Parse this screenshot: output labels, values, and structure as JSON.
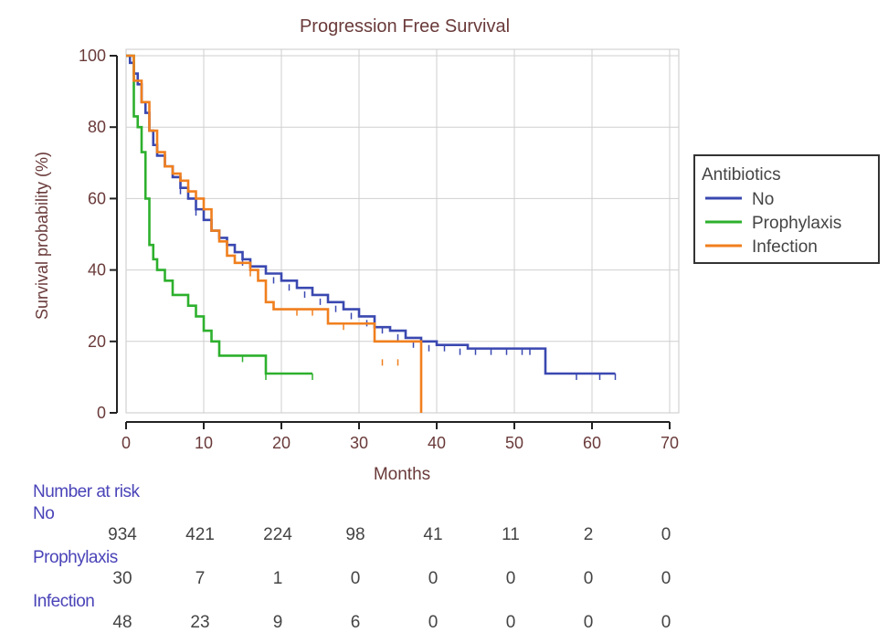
{
  "chart_data": {
    "type": "line",
    "step": true,
    "title": "Progression Free Survival",
    "xlabel": "Months",
    "ylabel": "Survival probability (%)",
    "xlim": [
      0,
      70
    ],
    "ylim": [
      0,
      100
    ],
    "xticks": [
      0,
      10,
      20,
      30,
      40,
      50,
      60,
      70
    ],
    "yticks": [
      0,
      20,
      40,
      60,
      80,
      100
    ],
    "grid": true,
    "legend": {
      "title": "Antibiotics",
      "position": "right"
    },
    "series": [
      {
        "name": "No",
        "color": "#3a48b0",
        "points": [
          [
            0,
            100
          ],
          [
            0.5,
            98
          ],
          [
            1,
            95
          ],
          [
            1.5,
            92
          ],
          [
            2,
            87
          ],
          [
            2.5,
            84
          ],
          [
            3,
            79
          ],
          [
            3.5,
            75
          ],
          [
            4,
            72
          ],
          [
            5,
            69
          ],
          [
            6,
            66
          ],
          [
            7,
            63
          ],
          [
            8,
            60
          ],
          [
            9,
            57
          ],
          [
            10,
            54
          ],
          [
            11,
            51
          ],
          [
            12,
            49
          ],
          [
            13,
            47
          ],
          [
            14,
            45
          ],
          [
            15,
            43
          ],
          [
            16,
            41
          ],
          [
            18,
            39
          ],
          [
            20,
            37
          ],
          [
            22,
            35
          ],
          [
            24,
            33
          ],
          [
            26,
            31
          ],
          [
            28,
            29
          ],
          [
            30,
            27
          ],
          [
            32,
            24
          ],
          [
            34,
            23
          ],
          [
            36,
            21
          ],
          [
            38,
            20
          ],
          [
            40,
            19
          ],
          [
            44,
            18
          ],
          [
            48,
            18
          ],
          [
            53,
            18
          ],
          [
            54,
            11
          ],
          [
            56,
            11
          ],
          [
            63,
            11
          ]
        ],
        "censors": [
          [
            7,
            63
          ],
          [
            9,
            57
          ],
          [
            13,
            47
          ],
          [
            15,
            43
          ],
          [
            17,
            40
          ],
          [
            19,
            38
          ],
          [
            21,
            36
          ],
          [
            23,
            34
          ],
          [
            25,
            32
          ],
          [
            27,
            30
          ],
          [
            29,
            28
          ],
          [
            31,
            26
          ],
          [
            33,
            24
          ],
          [
            35,
            22
          ],
          [
            37,
            20
          ],
          [
            39,
            19
          ],
          [
            41,
            19
          ],
          [
            43,
            18
          ],
          [
            45,
            18
          ],
          [
            47,
            18
          ],
          [
            49,
            18
          ],
          [
            51,
            18
          ],
          [
            52,
            18
          ],
          [
            58,
            11
          ],
          [
            61,
            11
          ],
          [
            63,
            11
          ]
        ]
      },
      {
        "name": "Prophylaxis",
        "color": "#2db02d",
        "points": [
          [
            0,
            100
          ],
          [
            1,
            83
          ],
          [
            1.5,
            80
          ],
          [
            2,
            73
          ],
          [
            2.5,
            60
          ],
          [
            3,
            47
          ],
          [
            3.5,
            43
          ],
          [
            4,
            40
          ],
          [
            5,
            37
          ],
          [
            6,
            33
          ],
          [
            8,
            30
          ],
          [
            9,
            27
          ],
          [
            10,
            23
          ],
          [
            11,
            20
          ],
          [
            12,
            16
          ],
          [
            17,
            16
          ],
          [
            18,
            11
          ],
          [
            24,
            11
          ]
        ],
        "censors": [
          [
            15,
            16
          ],
          [
            18,
            11
          ],
          [
            24,
            11
          ]
        ]
      },
      {
        "name": "Infection",
        "color": "#f07f1e",
        "points": [
          [
            0,
            100
          ],
          [
            1,
            93
          ],
          [
            2,
            87
          ],
          [
            3,
            79
          ],
          [
            4,
            73
          ],
          [
            5,
            69
          ],
          [
            6,
            67
          ],
          [
            7,
            65
          ],
          [
            8,
            62
          ],
          [
            9,
            60
          ],
          [
            10,
            57
          ],
          [
            11,
            51
          ],
          [
            12,
            48
          ],
          [
            13,
            44
          ],
          [
            14,
            42
          ],
          [
            16,
            40
          ],
          [
            17,
            37
          ],
          [
            18,
            31
          ],
          [
            19,
            29
          ],
          [
            25,
            29
          ],
          [
            26,
            25
          ],
          [
            31,
            25
          ],
          [
            32,
            20
          ],
          [
            37,
            20
          ],
          [
            38,
            15
          ],
          [
            38,
            0
          ]
        ],
        "censors": [
          [
            16,
            40
          ],
          [
            22,
            29
          ],
          [
            24,
            29
          ],
          [
            28,
            25
          ],
          [
            33,
            15
          ],
          [
            35,
            15
          ]
        ]
      }
    ],
    "number_at_risk": {
      "header": "Number at risk",
      "times": [
        0,
        10,
        20,
        30,
        40,
        50,
        60,
        70
      ],
      "rows": [
        {
          "label": "No",
          "values": [
            "934",
            "421",
            "224",
            "98",
            "41",
            "11",
            "2",
            "0"
          ]
        },
        {
          "label": "Prophylaxis",
          "values": [
            "30",
            "7",
            "1",
            "0",
            "0",
            "0",
            "0",
            "0"
          ]
        },
        {
          "label": "Infection",
          "values": [
            "48",
            "23",
            "9",
            "6",
            "0",
            "0",
            "0",
            "0"
          ]
        }
      ]
    }
  }
}
